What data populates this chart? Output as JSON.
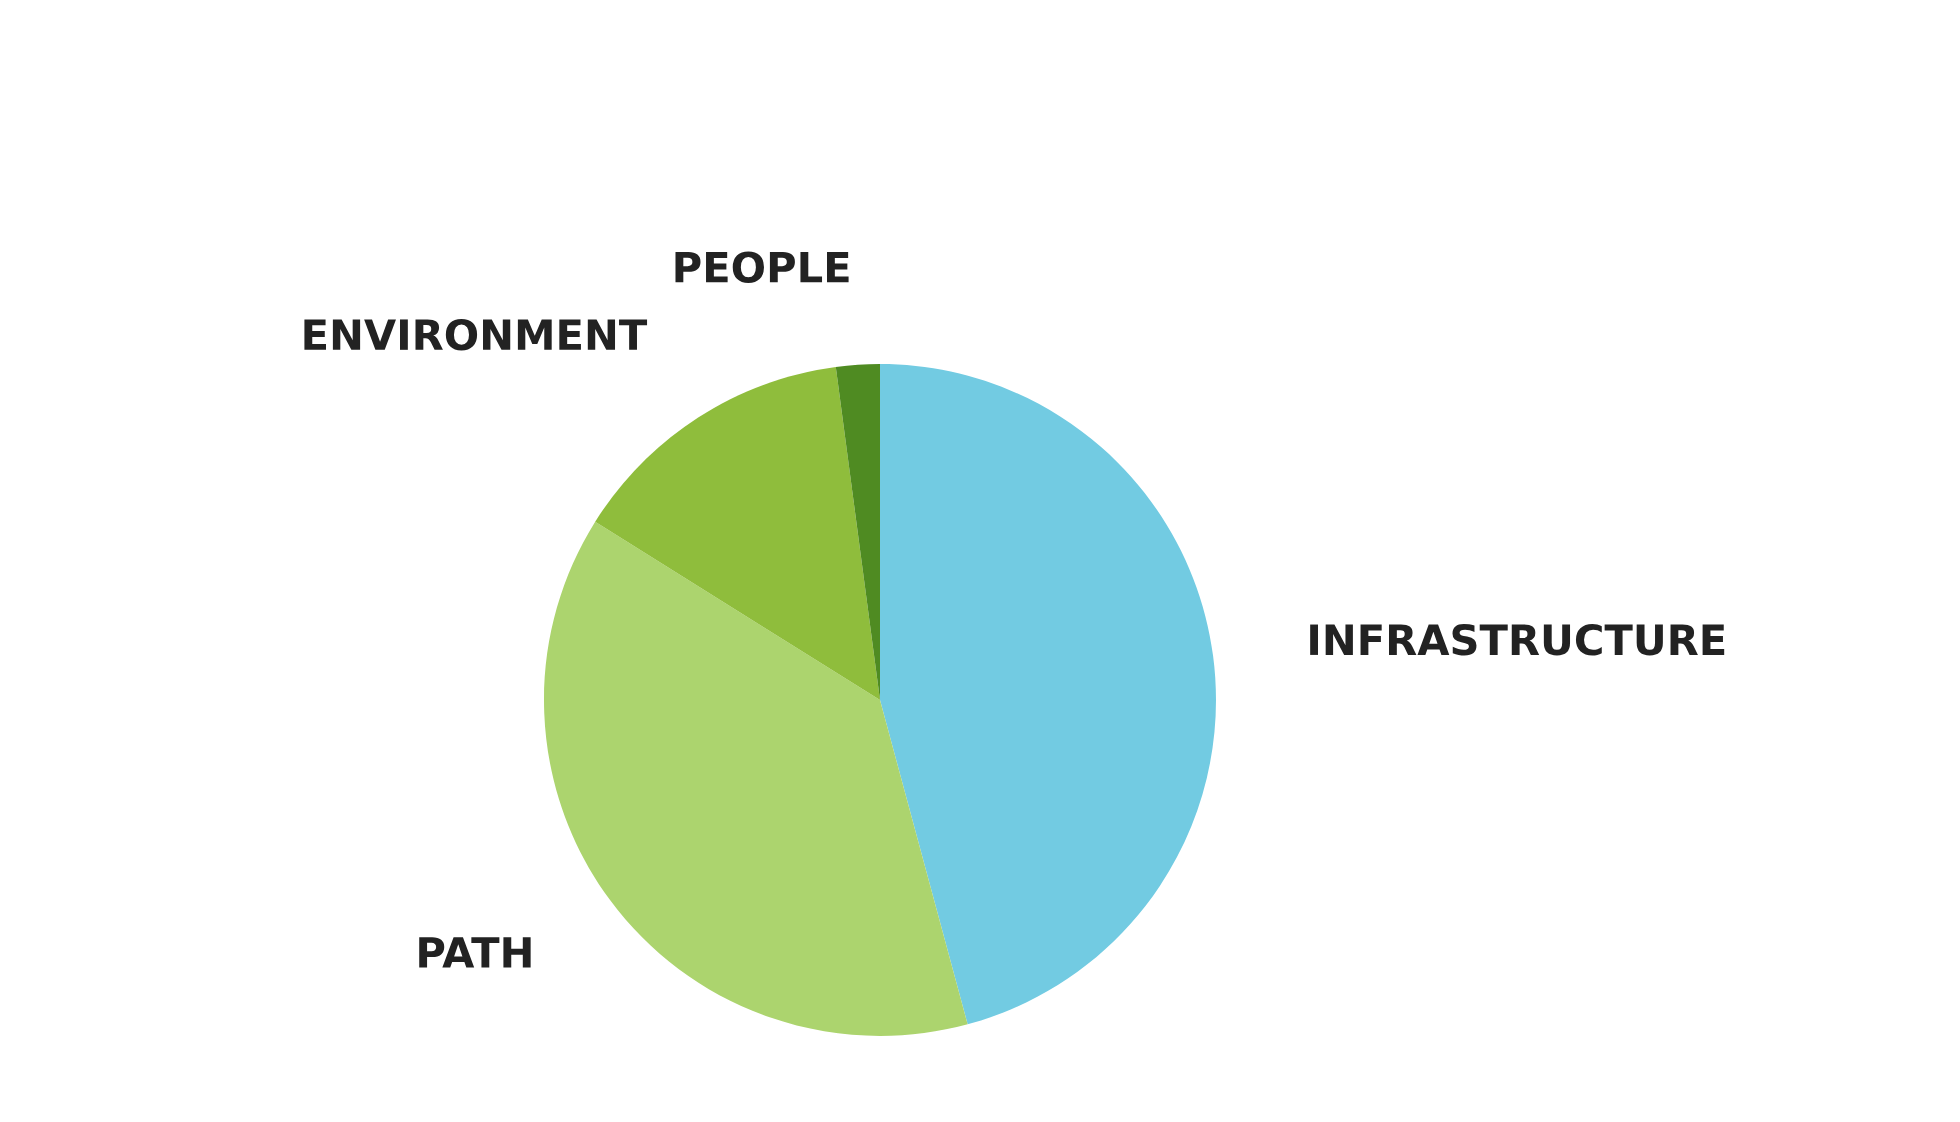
{
  "chart_data": {
    "type": "pie",
    "categories": [
      "INFRASTRUCTURE",
      "PATH",
      "ENVIRONMENT",
      "PEOPLE"
    ],
    "values": [
      45.8,
      38.1,
      14.0,
      2.1
    ],
    "colors": [
      "#72cbe2",
      "#acd46e",
      "#8fbd3c",
      "#4f8b22"
    ]
  }
}
